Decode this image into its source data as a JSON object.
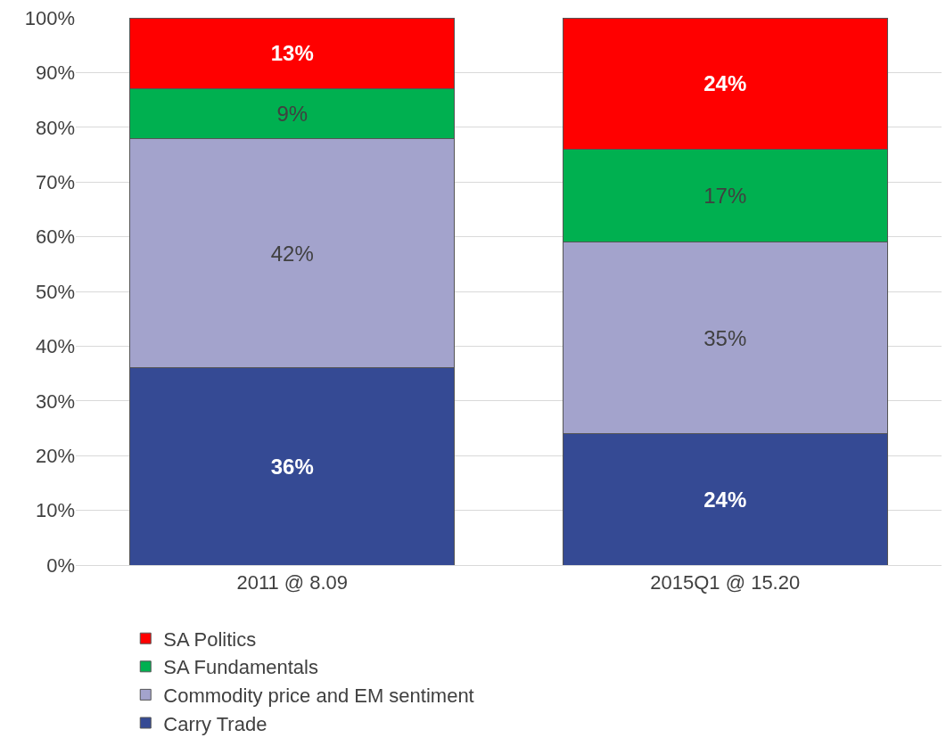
{
  "chart_data": {
    "type": "bar",
    "stacked": true,
    "categories": [
      "2011 @ 8.09",
      "2015Q1 @ 15.20"
    ],
    "series": [
      {
        "name": "Carry Trade",
        "color": "#354a94",
        "values": [
          36,
          24
        ],
        "value_labels": [
          "36%",
          "24%"
        ]
      },
      {
        "name": "Commodity price and EM sentiment",
        "color": "#a3a3cc",
        "values": [
          42,
          35
        ],
        "value_labels": [
          "42%",
          "35%"
        ]
      },
      {
        "name": "SA Fundamentals",
        "color": "#00b050",
        "values": [
          9,
          17
        ],
        "value_labels": [
          "9%",
          "17%"
        ]
      },
      {
        "name": "SA Politics",
        "color": "#ff0000",
        "values": [
          13,
          24
        ],
        "value_labels": [
          "13%",
          "24%"
        ]
      }
    ],
    "ylim": [
      0,
      100
    ],
    "yticks": [
      {
        "value": 0,
        "label": "0%"
      },
      {
        "value": 10,
        "label": "10%"
      },
      {
        "value": 20,
        "label": "20%"
      },
      {
        "value": 30,
        "label": "30%"
      },
      {
        "value": 40,
        "label": "40%"
      },
      {
        "value": 50,
        "label": "50%"
      },
      {
        "value": 60,
        "label": "60%"
      },
      {
        "value": 70,
        "label": "70%"
      },
      {
        "value": 80,
        "label": "80%"
      },
      {
        "value": 90,
        "label": "90%"
      },
      {
        "value": 100,
        "label": "100%"
      }
    ],
    "grid": "y",
    "legend": "bottom"
  }
}
